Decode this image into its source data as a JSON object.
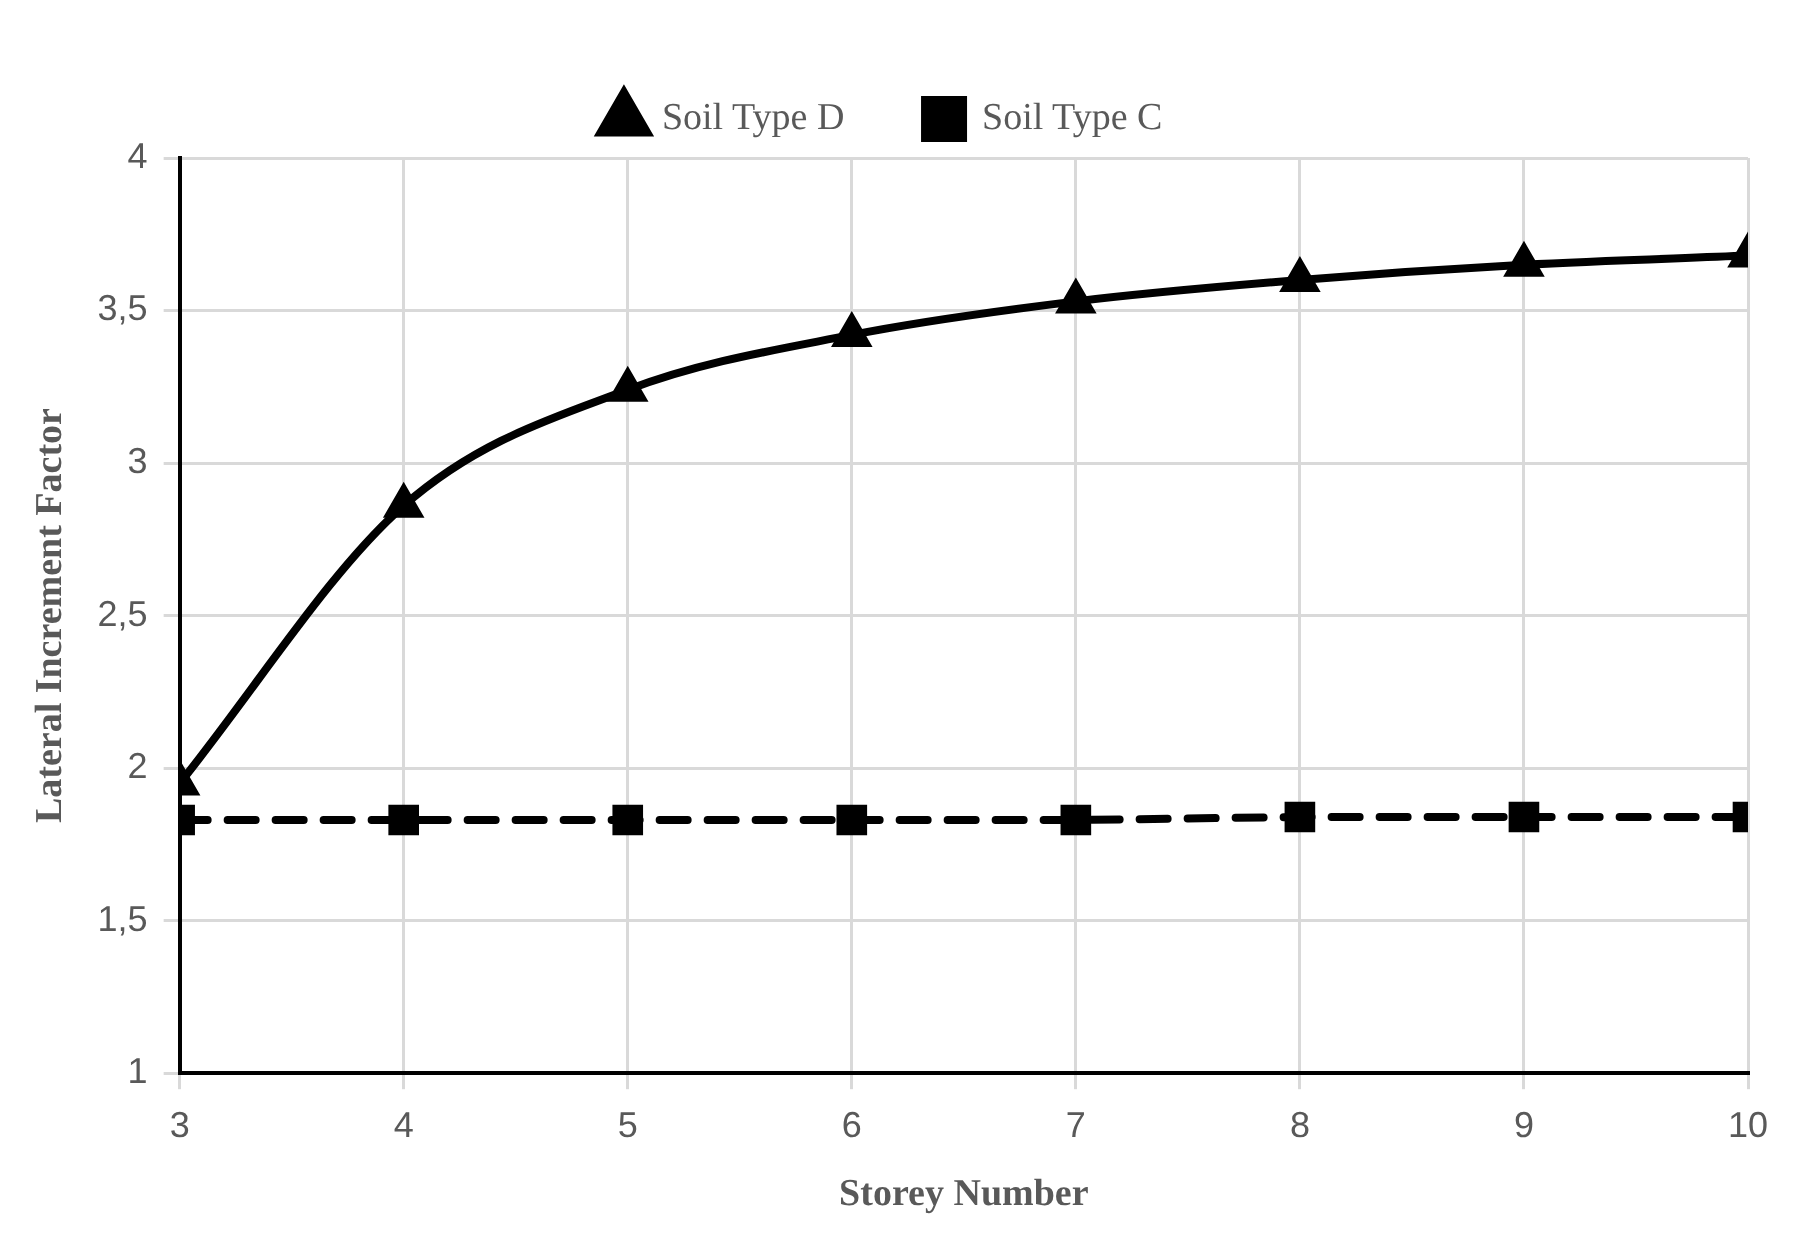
{
  "chart_data": {
    "type": "line",
    "xlabel": "Storey Number",
    "ylabel": "Lateral Increment Factor",
    "x": [
      3,
      4,
      5,
      6,
      7,
      8,
      9,
      10
    ],
    "series": [
      {
        "name": "Soil Type D",
        "color": "#000000",
        "values": [
          1.95,
          2.86,
          3.24,
          3.42,
          3.53,
          3.6,
          3.65,
          3.68
        ],
        "marker": "triangle",
        "line_style": "solid"
      },
      {
        "name": "Soil Type C",
        "color": "#000000",
        "values": [
          1.83,
          1.83,
          1.83,
          1.83,
          1.83,
          1.84,
          1.84,
          1.84
        ],
        "marker": "square",
        "line_style": "dashed"
      }
    ],
    "xlim": [
      3,
      10
    ],
    "xticks": [
      3,
      4,
      5,
      6,
      7,
      8,
      9,
      10
    ],
    "ylim": [
      1,
      4
    ],
    "yticks": [
      1,
      {
        "value": 1.5,
        "label": "1,5"
      },
      2,
      {
        "value": 2.5,
        "label": "2,5"
      },
      3,
      {
        "value": 3.5,
        "label": "3,5"
      },
      4
    ],
    "grid": true,
    "legend": "top"
  }
}
